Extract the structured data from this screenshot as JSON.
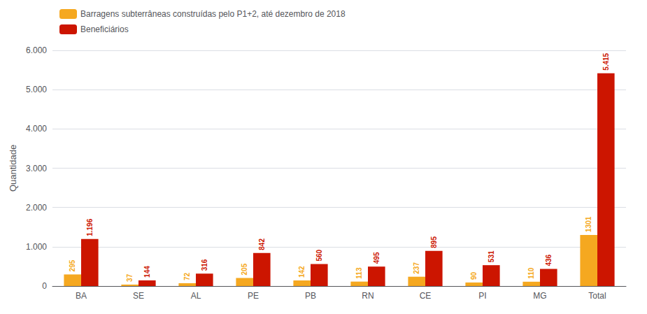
{
  "chart_data": {
    "type": "bar",
    "categories": [
      "BA",
      "SE",
      "AL",
      "PE",
      "PB",
      "RN",
      "CE",
      "PI",
      "MG",
      "Total"
    ],
    "series": [
      {
        "name": "Barragens subterrâneas construídas pelo P1+2, até dezembro de 2018",
        "color": "#F5A820",
        "values": [
          295,
          37,
          72,
          205,
          142,
          113,
          237,
          90,
          110,
          1301
        ]
      },
      {
        "name": "Beneficiários",
        "color": "#CC1500",
        "values": [
          1196,
          144,
          316,
          842,
          560,
          495,
          895,
          531,
          436,
          5415
        ],
        "value_labels": [
          "1.196",
          "144",
          "316",
          "842",
          "560",
          "495",
          "895",
          "531",
          "436",
          "5.415"
        ]
      }
    ],
    "ylabel": "Quantidade",
    "ylim": [
      0,
      6000
    ],
    "yticks": [
      0,
      {
        "value": 1000,
        "label": "1.000"
      },
      {
        "value": 2000,
        "label": "2.000"
      },
      {
        "value": 3000,
        "label": "3.000"
      },
      {
        "value": 4000,
        "label": "4.000"
      },
      {
        "value": 5000,
        "label": "5.000"
      },
      {
        "value": 6000,
        "label": "6.000"
      }
    ],
    "grid": true,
    "legend": "upper left",
    "data_labels": true
  }
}
